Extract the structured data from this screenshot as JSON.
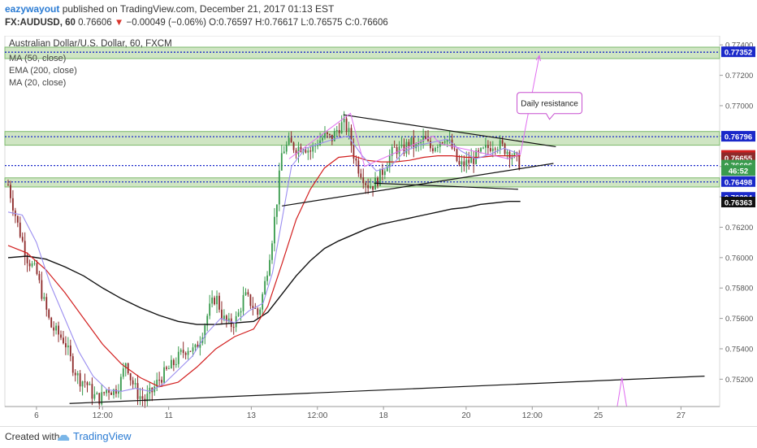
{
  "header": {
    "author": "eazywayout",
    "published_text": "published on TradingView.com, December 21, 2017 01:13 EST",
    "symbol": "FX:AUDUSD, 60",
    "last": "0.76606",
    "change_arrow": "▼",
    "change": "−0.00049 (−0.06%)",
    "o_label": "O:",
    "o": "0.76597",
    "h_label": "H:",
    "h": "0.76617",
    "l_label": "L:",
    "l": "0.76575",
    "c_label": "C:",
    "c": "0.76606"
  },
  "legend": {
    "title": "Australian Dollar/U.S. Dollar, 60, FXCM",
    "items": [
      "MA (50, close)",
      "EMA (200, close)",
      "MA (20, close)"
    ]
  },
  "annotation": {
    "text": "Daily resistance"
  },
  "footer": {
    "created": "Created with",
    "brand": "TradingView"
  },
  "colors": {
    "up": "#3a9b4e",
    "down": "#8e2a2a",
    "ma50": "#d21f1f",
    "ema200": "#111111",
    "ma20": "#9b8ef0",
    "zone_fill": "#cfe5c3",
    "zone_border": "#7dba6c",
    "level_line": "#1a28c9",
    "projection": "#e06cf0"
  },
  "chart_data": {
    "type": "candlestick",
    "ylim": [
      0.7502,
      0.7746
    ],
    "x_ticks": [
      {
        "t": 12,
        "label": "6"
      },
      {
        "t": 40,
        "label": "12:00"
      },
      {
        "t": 68,
        "label": "11"
      },
      {
        "t": 103,
        "label": "13"
      },
      {
        "t": 131,
        "label": "12:00"
      },
      {
        "t": 159,
        "label": "18"
      },
      {
        "t": 194,
        "label": "20"
      },
      {
        "t": 222,
        "label": "12:00"
      },
      {
        "t": 250,
        "label": "25"
      },
      {
        "t": 285,
        "label": "27"
      }
    ],
    "y_ticks": [
      "0.77400",
      "0.77200",
      "0.77000",
      "0.76800",
      "0.76600",
      "0.76400",
      "0.76200",
      "0.76000",
      "0.75800",
      "0.75600",
      "0.75400",
      "0.75200"
    ],
    "y_tick_values": [
      0.774,
      0.772,
      0.77,
      0.768,
      0.766,
      0.764,
      0.762,
      0.76,
      0.758,
      0.756,
      0.754,
      0.752
    ],
    "price_labels": [
      {
        "value": 0.77352,
        "text": "0.77352",
        "bg": "#1a28c9",
        "fg": "#ffffff"
      },
      {
        "value": 0.76796,
        "text": "0.76796",
        "bg": "#1a28c9",
        "fg": "#ffffff"
      },
      {
        "value": 0.7667,
        "text": "0.76670",
        "bg": "#d21f1f",
        "fg": "#ffffff"
      },
      {
        "value": 0.76655,
        "text": "0.76655",
        "bg": "#8e2a2a",
        "fg": "#ffffff"
      },
      {
        "value": 0.76606,
        "text": "0.76606",
        "bg": "#3a9b4e",
        "fg": "#ffffff"
      },
      {
        "value": 0.76571,
        "text": "46:52",
        "bg": "#3a9b4e",
        "fg": "#ffffff"
      },
      {
        "value": 0.76498,
        "text": "0.76498",
        "bg": "#1a28c9",
        "fg": "#ffffff"
      },
      {
        "value": 0.76394,
        "text": "0.76394",
        "bg": "#1a28c9",
        "fg": "#ffffff"
      },
      {
        "value": 0.76363,
        "text": "0.76363",
        "bg": "#111111",
        "fg": "#ffffff"
      }
    ],
    "zones": [
      {
        "name": "zone-top",
        "top": 0.77385,
        "bottom": 0.7731
      },
      {
        "name": "zone-daily-resistance",
        "top": 0.7683,
        "bottom": 0.7674
      },
      {
        "name": "zone-support",
        "top": 0.76525,
        "bottom": 0.76465
      }
    ],
    "dotted_levels": [
      0.77352,
      0.76796,
      0.76606,
      0.76498
    ],
    "price_path": [
      [
        0,
        0.7648
      ],
      [
        4,
        0.7622
      ],
      [
        8,
        0.76
      ],
      [
        12,
        0.759
      ],
      [
        15,
        0.7572
      ],
      [
        18,
        0.7555
      ],
      [
        21,
        0.755
      ],
      [
        24,
        0.7545
      ],
      [
        27,
        0.753
      ],
      [
        30,
        0.752
      ],
      [
        33,
        0.7518
      ],
      [
        36,
        0.7509
      ],
      [
        39,
        0.7507
      ],
      [
        42,
        0.7514
      ],
      [
        45,
        0.7512
      ],
      [
        48,
        0.752
      ],
      [
        50,
        0.7533
      ],
      [
        52,
        0.752
      ],
      [
        55,
        0.751
      ],
      [
        58,
        0.7506
      ],
      [
        61,
        0.7512
      ],
      [
        64,
        0.752
      ],
      [
        67,
        0.7525
      ],
      [
        70,
        0.753
      ],
      [
        73,
        0.7536
      ],
      [
        76,
        0.7541
      ],
      [
        79,
        0.7538
      ],
      [
        82,
        0.755
      ],
      [
        85,
        0.7565
      ],
      [
        88,
        0.7575
      ],
      [
        91,
        0.756
      ],
      [
        94,
        0.7555
      ],
      [
        97,
        0.756
      ],
      [
        100,
        0.7575
      ],
      [
        103,
        0.757
      ],
      [
        106,
        0.7562
      ],
      [
        109,
        0.7585
      ],
      [
        112,
        0.7615
      ],
      [
        114,
        0.764
      ],
      [
        116,
        0.767
      ],
      [
        119,
        0.7675
      ],
      [
        122,
        0.7672
      ],
      [
        125,
        0.7674
      ],
      [
        128,
        0.767
      ],
      [
        131,
        0.7676
      ],
      [
        134,
        0.768
      ],
      [
        137,
        0.7678
      ],
      [
        140,
        0.7686
      ],
      [
        142,
        0.7688
      ],
      [
        144,
        0.7684
      ],
      [
        146,
        0.767
      ],
      [
        148,
        0.766
      ],
      [
        150,
        0.7655
      ],
      [
        152,
        0.7648
      ],
      [
        155,
        0.7648
      ],
      [
        158,
        0.7655
      ],
      [
        161,
        0.7665
      ],
      [
        164,
        0.7672
      ],
      [
        167,
        0.767
      ],
      [
        170,
        0.7676
      ],
      [
        173,
        0.7672
      ],
      [
        176,
        0.7678
      ],
      [
        179,
        0.7672
      ],
      [
        182,
        0.7676
      ],
      [
        185,
        0.768
      ],
      [
        188,
        0.7672
      ],
      [
        191,
        0.766
      ],
      [
        194,
        0.7662
      ],
      [
        197,
        0.7665
      ],
      [
        200,
        0.7668
      ],
      [
        203,
        0.7672
      ],
      [
        206,
        0.7676
      ],
      [
        209,
        0.7673
      ],
      [
        212,
        0.767
      ],
      [
        215,
        0.7665
      ],
      [
        217,
        0.7661
      ]
    ],
    "candle_count": 214,
    "last_candle_t": 216.5,
    "ma50": [
      [
        0,
        0.7608
      ],
      [
        8,
        0.7603
      ],
      [
        16,
        0.7592
      ],
      [
        24,
        0.7577
      ],
      [
        32,
        0.756
      ],
      [
        40,
        0.7543
      ],
      [
        48,
        0.753
      ],
      [
        56,
        0.7521
      ],
      [
        64,
        0.7515
      ],
      [
        72,
        0.7518
      ],
      [
        80,
        0.7528
      ],
      [
        88,
        0.754
      ],
      [
        96,
        0.7548
      ],
      [
        104,
        0.7553
      ],
      [
        110,
        0.7568
      ],
      [
        116,
        0.7596
      ],
      [
        122,
        0.7625
      ],
      [
        128,
        0.7645
      ],
      [
        134,
        0.7659
      ],
      [
        140,
        0.7666
      ],
      [
        146,
        0.7667
      ],
      [
        152,
        0.7664
      ],
      [
        158,
        0.7663
      ],
      [
        164,
        0.7663
      ],
      [
        170,
        0.7664
      ],
      [
        176,
        0.7666
      ],
      [
        182,
        0.7667
      ],
      [
        188,
        0.7667
      ],
      [
        194,
        0.7666
      ],
      [
        200,
        0.7666
      ],
      [
        206,
        0.7667
      ],
      [
        212,
        0.7667
      ],
      [
        217,
        0.7667
      ]
    ],
    "ema200": [
      [
        0,
        0.76
      ],
      [
        8,
        0.7601
      ],
      [
        16,
        0.7599
      ],
      [
        24,
        0.7594
      ],
      [
        32,
        0.7588
      ],
      [
        40,
        0.758
      ],
      [
        48,
        0.7573
      ],
      [
        56,
        0.7567
      ],
      [
        64,
        0.7562
      ],
      [
        72,
        0.7558
      ],
      [
        80,
        0.7556
      ],
      [
        88,
        0.7556
      ],
      [
        96,
        0.7557
      ],
      [
        104,
        0.7558
      ],
      [
        110,
        0.7564
      ],
      [
        116,
        0.7576
      ],
      [
        122,
        0.7588
      ],
      [
        128,
        0.7598
      ],
      [
        134,
        0.7606
      ],
      [
        140,
        0.7611
      ],
      [
        146,
        0.7615
      ],
      [
        152,
        0.7619
      ],
      [
        158,
        0.7622
      ],
      [
        164,
        0.7624
      ],
      [
        170,
        0.7626
      ],
      [
        176,
        0.7628
      ],
      [
        182,
        0.763
      ],
      [
        188,
        0.7632
      ],
      [
        194,
        0.7633
      ],
      [
        200,
        0.7635
      ],
      [
        206,
        0.7636
      ],
      [
        212,
        0.7637
      ],
      [
        217,
        0.7637
      ]
    ],
    "ma20": [
      [
        0,
        0.763
      ],
      [
        6,
        0.7628
      ],
      [
        12,
        0.761
      ],
      [
        18,
        0.7582
      ],
      [
        24,
        0.756
      ],
      [
        30,
        0.7538
      ],
      [
        36,
        0.7522
      ],
      [
        42,
        0.7513
      ],
      [
        48,
        0.7512
      ],
      [
        54,
        0.7514
      ],
      [
        60,
        0.7512
      ],
      [
        66,
        0.7517
      ],
      [
        72,
        0.7526
      ],
      [
        78,
        0.7535
      ],
      [
        84,
        0.755
      ],
      [
        90,
        0.756
      ],
      [
        96,
        0.7557
      ],
      [
        102,
        0.7565
      ],
      [
        108,
        0.757
      ],
      [
        112,
        0.759
      ],
      [
        116,
        0.7625
      ],
      [
        120,
        0.766
      ],
      [
        126,
        0.7672
      ],
      [
        132,
        0.7675
      ],
      [
        138,
        0.7678
      ],
      [
        144,
        0.768
      ],
      [
        150,
        0.7667
      ],
      [
        156,
        0.7657
      ],
      [
        162,
        0.766
      ],
      [
        168,
        0.767
      ],
      [
        174,
        0.7674
      ],
      [
        180,
        0.7676
      ],
      [
        186,
        0.7678
      ],
      [
        192,
        0.767
      ],
      [
        198,
        0.7665
      ],
      [
        204,
        0.7668
      ],
      [
        210,
        0.7672
      ],
      [
        217,
        0.7668
      ]
    ],
    "trendlines": [
      {
        "name": "triangle-upper-line",
        "from": [
          142,
          0.7694
        ],
        "to": [
          232,
          0.7673
        ],
        "color": "#111111"
      },
      {
        "name": "triangle-lower-line",
        "from": [
          116,
          0.7634
        ],
        "to": [
          231,
          0.7662
        ],
        "color": "#111111"
      },
      {
        "name": "support-trend-line",
        "from": [
          155,
          0.7649
        ],
        "to": [
          216,
          0.7645
        ],
        "color": "#111111"
      },
      {
        "name": "long-term-trend-line",
        "from": [
          26,
          0.7504
        ],
        "to": [
          295,
          0.7522
        ],
        "color": "#111111"
      }
    ],
    "projections": [
      {
        "name": "projection-path-upper",
        "points": [
          [
            119,
            0.7665
          ],
          [
            145,
            0.7695
          ],
          [
            151,
            0.766
          ],
          [
            180,
            0.768
          ],
          [
            183,
            0.7675
          ],
          [
            212,
            0.7665
          ],
          [
            217,
            0.7668
          ],
          [
            225,
            0.7733
          ]
        ]
      },
      {
        "name": "projection-wedge-low",
        "points": [
          [
            258,
            0.7502
          ],
          [
            260,
            0.7521
          ],
          [
            262,
            0.7502
          ]
        ]
      }
    ],
    "annotation_anchor": [
      230,
      0.7698
    ]
  }
}
